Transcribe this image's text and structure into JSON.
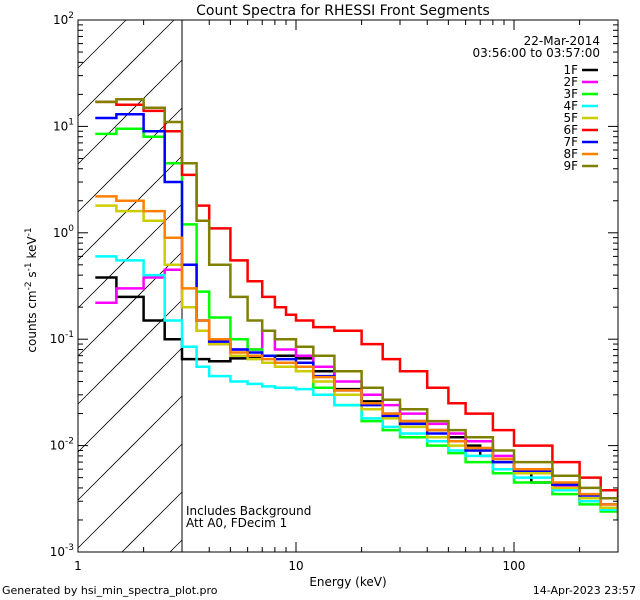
{
  "chart_data": {
    "type": "line",
    "title": "Count Spectra for RHESSI Front Segments",
    "xlabel": "Energy (keV)",
    "ylabel": "counts cm",
    "ylabel_parts": [
      "counts cm",
      "-2",
      " s",
      "-1",
      " keV",
      "-1"
    ],
    "xscale": "log",
    "yscale": "log",
    "xlim": [
      1,
      300
    ],
    "ylim": [
      0.001,
      100
    ],
    "x_ticks": [
      {
        "v": 1,
        "label": "1"
      },
      {
        "v": 10,
        "label": "10"
      },
      {
        "v": 100,
        "label": "100"
      }
    ],
    "y_ticks": [
      {
        "v": 0.001,
        "base": "10",
        "exp": "-3"
      },
      {
        "v": 0.01,
        "base": "10",
        "exp": "-2"
      },
      {
        "v": 0.1,
        "base": "10",
        "exp": "-1"
      },
      {
        "v": 1,
        "base": "10",
        "exp": "0"
      },
      {
        "v": 10,
        "base": "10",
        "exp": "1"
      },
      {
        "v": 100,
        "base": "10",
        "exp": "2"
      }
    ],
    "threshold_energy": 3,
    "date": "22-Mar-2014",
    "time_range": "03:56:00 to 03:57:00",
    "annotations": [
      "Includes Background",
      "Att A0, FDecim 1"
    ],
    "series": [
      {
        "name": "1F",
        "color": "#000000",
        "x": [
          1.2,
          1.5,
          2,
          2.5,
          3,
          4,
          5,
          6,
          7,
          8,
          9,
          10,
          12,
          15,
          20,
          25,
          30,
          40,
          50,
          60,
          70,
          80,
          100,
          120,
          150,
          200,
          250,
          300
        ],
        "y": [
          0.38,
          0.25,
          0.15,
          0.1,
          0.065,
          0.062,
          0.066,
          0.068,
          0.07,
          0.07,
          0.07,
          0.066,
          0.05,
          0.034,
          0.026,
          0.02,
          0.017,
          0.014,
          0.012,
          0.01,
          0.008,
          0.007,
          0.0055,
          0.0045,
          0.004,
          0.003,
          0.0025,
          0.002
        ]
      },
      {
        "name": "2F",
        "color": "#ff00ff",
        "x": [
          1.2,
          1.5,
          2,
          2.5,
          3,
          3.5,
          4,
          5,
          6,
          7,
          8,
          10,
          12,
          15,
          20,
          25,
          30,
          40,
          50,
          60,
          80,
          100,
          150,
          200,
          250,
          300
        ],
        "y": [
          0.22,
          0.3,
          0.38,
          0.45,
          0.2,
          0.12,
          0.09,
          0.08,
          0.08,
          0.12,
          0.08,
          0.07,
          0.055,
          0.04,
          0.03,
          0.024,
          0.02,
          0.016,
          0.013,
          0.011,
          0.008,
          0.006,
          0.0042,
          0.003,
          0.0025,
          0.002
        ]
      },
      {
        "name": "3F",
        "color": "#00ff00",
        "x": [
          1.2,
          1.5,
          2,
          2.5,
          3,
          3.5,
          4,
          5,
          6,
          7,
          8,
          10,
          12,
          15,
          20,
          25,
          30,
          40,
          50,
          60,
          80,
          100,
          150,
          200,
          250,
          300
        ],
        "y": [
          8.5,
          9.5,
          8,
          4.5,
          1.2,
          0.28,
          0.16,
          0.1,
          0.08,
          0.07,
          0.06,
          0.05,
          0.035,
          0.024,
          0.017,
          0.014,
          0.012,
          0.01,
          0.0085,
          0.007,
          0.0055,
          0.0045,
          0.0035,
          0.0028,
          0.0024,
          0.002
        ]
      },
      {
        "name": "4F",
        "color": "#00ffff",
        "x": [
          1.2,
          1.5,
          2,
          2.5,
          3,
          3.5,
          4,
          5,
          6,
          7,
          8,
          10,
          12,
          15,
          20,
          25,
          30,
          40,
          50,
          60,
          80,
          100,
          150,
          200,
          250,
          300
        ],
        "y": [
          0.6,
          0.55,
          0.4,
          0.15,
          0.085,
          0.055,
          0.045,
          0.04,
          0.038,
          0.036,
          0.035,
          0.034,
          0.03,
          0.024,
          0.018,
          0.015,
          0.013,
          0.011,
          0.009,
          0.008,
          0.006,
          0.005,
          0.0038,
          0.003,
          0.0025,
          0.002
        ]
      },
      {
        "name": "5F",
        "color": "#cccc00",
        "x": [
          1.2,
          1.5,
          2,
          2.5,
          3,
          3.5,
          4,
          5,
          6,
          7,
          8,
          10,
          12,
          15,
          20,
          25,
          30,
          40,
          50,
          60,
          80,
          100,
          150,
          200,
          250,
          300
        ],
        "y": [
          1.8,
          1.6,
          1.3,
          0.5,
          0.2,
          0.12,
          0.09,
          0.07,
          0.065,
          0.06,
          0.055,
          0.05,
          0.04,
          0.03,
          0.022,
          0.018,
          0.015,
          0.012,
          0.01,
          0.009,
          0.007,
          0.0055,
          0.004,
          0.0032,
          0.0026,
          0.0021
        ]
      },
      {
        "name": "6F",
        "color": "#ff0000",
        "x": [
          1.2,
          1.5,
          2,
          2.5,
          3,
          3.5,
          4,
          5,
          6,
          7,
          8,
          9,
          10,
          12,
          15,
          20,
          25,
          30,
          40,
          50,
          60,
          80,
          100,
          150,
          200,
          250,
          300
        ],
        "y": [
          17,
          16,
          14,
          9,
          3.5,
          1.8,
          1.1,
          0.55,
          0.35,
          0.25,
          0.2,
          0.17,
          0.15,
          0.13,
          0.12,
          0.09,
          0.065,
          0.05,
          0.035,
          0.025,
          0.02,
          0.014,
          0.01,
          0.007,
          0.005,
          0.0038,
          0.003
        ]
      },
      {
        "name": "7F",
        "color": "#0000ff",
        "x": [
          1.2,
          1.5,
          2,
          2.5,
          3,
          3.5,
          4,
          5,
          6,
          7,
          8,
          10,
          12,
          15,
          20,
          25,
          30,
          40,
          50,
          60,
          80,
          100,
          150,
          200,
          250,
          300
        ],
        "y": [
          12,
          13,
          9,
          3,
          0.5,
          0.15,
          0.095,
          0.08,
          0.075,
          0.07,
          0.065,
          0.06,
          0.045,
          0.033,
          0.024,
          0.019,
          0.016,
          0.013,
          0.011,
          0.009,
          0.007,
          0.0058,
          0.0043,
          0.0034,
          0.0028,
          0.0023
        ]
      },
      {
        "name": "8F",
        "color": "#ff8000",
        "x": [
          1.2,
          1.5,
          2,
          2.5,
          3,
          3.5,
          4,
          5,
          6,
          7,
          8,
          10,
          12,
          15,
          20,
          25,
          30,
          40,
          50,
          60,
          80,
          100,
          150,
          200,
          250,
          300
        ],
        "y": [
          2.2,
          2.0,
          1.6,
          0.9,
          0.3,
          0.15,
          0.1,
          0.075,
          0.07,
          0.065,
          0.06,
          0.055,
          0.044,
          0.033,
          0.025,
          0.02,
          0.017,
          0.014,
          0.011,
          0.0095,
          0.0075,
          0.006,
          0.0045,
          0.0035,
          0.0028,
          0.0023
        ]
      },
      {
        "name": "9F",
        "color": "#808000",
        "x": [
          1.2,
          1.5,
          2,
          2.5,
          3,
          3.5,
          4,
          5,
          6,
          7,
          8,
          10,
          12,
          15,
          20,
          25,
          30,
          40,
          50,
          60,
          80,
          100,
          150,
          200,
          250,
          300
        ],
        "y": [
          17,
          18,
          15,
          11,
          4.5,
          1.3,
          0.5,
          0.25,
          0.15,
          0.12,
          0.1,
          0.085,
          0.07,
          0.05,
          0.035,
          0.027,
          0.022,
          0.017,
          0.014,
          0.012,
          0.009,
          0.007,
          0.0052,
          0.004,
          0.0032,
          0.0026
        ]
      }
    ]
  },
  "footer": {
    "left": "Generated by hsi_min_spectra_plot.pro",
    "right": "14-Apr-2023 23:57"
  }
}
